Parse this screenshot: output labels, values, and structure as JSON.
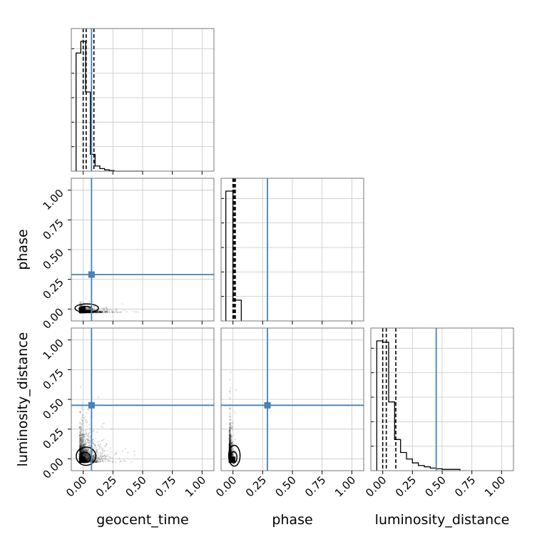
{
  "chart_data": {
    "type": "corner",
    "parameters": [
      "geocent_time",
      "phase",
      "luminosity_distance"
    ],
    "axis_range": [
      -0.1,
      1.1
    ],
    "ticks": [
      0.0,
      0.25,
      0.5,
      0.75,
      1.0
    ],
    "tick_labels": [
      "0.00",
      "0.25",
      "0.50",
      "0.75",
      "1.00"
    ],
    "grid": true,
    "truth": {
      "geocent_time": 0.07,
      "phase": 0.29,
      "luminosity_distance": 0.45
    },
    "truth_color": "#4682b4",
    "histograms": [
      {
        "param": "geocent_time",
        "bin_edges": [
          -0.06,
          -0.02,
          0.02,
          0.06,
          0.1,
          0.14,
          0.18,
          0.22,
          0.26,
          0.3,
          0.34,
          0.38,
          0.42,
          0.46,
          0.5
        ],
        "counts": [
          0.91,
          1.0,
          0.61,
          0.13,
          0.04,
          0.02,
          0.01,
          0.005,
          0.0,
          0.0,
          0.0,
          0.0,
          0.0,
          0.0
        ],
        "quantiles": [
          0.0,
          0.025,
          0.09
        ]
      },
      {
        "param": "phase",
        "bin_edges": [
          -0.06,
          0.0,
          0.07
        ],
        "counts": [
          1.0,
          0.16
        ],
        "quantiles": [
          0.0,
          0.01,
          0.02
        ]
      },
      {
        "param": "luminosity_distance",
        "bin_edges": [
          -0.05,
          0.0,
          0.05,
          0.1,
          0.15,
          0.2,
          0.25,
          0.3,
          0.35,
          0.4,
          0.45,
          0.5,
          0.55,
          0.6,
          0.65
        ],
        "counts": [
          1.0,
          0.99,
          0.53,
          0.24,
          0.14,
          0.09,
          0.06,
          0.04,
          0.03,
          0.02,
          0.015,
          0.01,
          0.01,
          0.01
        ],
        "quantiles": [
          0.0,
          0.03,
          0.11
        ]
      }
    ],
    "scatter_panels": [
      {
        "x_param": "geocent_time",
        "y_param": "phase",
        "x_spread": 0.18,
        "y_spread": 0.04,
        "x_max": 0.5,
        "y_max": 0.12,
        "n": 1500
      },
      {
        "x_param": "geocent_time",
        "y_param": "luminosity_distance",
        "x_spread": 0.15,
        "y_spread": 0.22,
        "x_max": 0.55,
        "y_max": 0.9,
        "n": 2200
      },
      {
        "x_param": "phase",
        "y_param": "luminosity_distance",
        "x_spread": 0.025,
        "y_spread": 0.25,
        "x_max": 0.08,
        "y_max": 0.95,
        "n": 1800
      }
    ],
    "xlabels": [
      "geocent_time",
      "phase",
      "luminosity_distance"
    ],
    "ylabels": [
      "",
      "phase",
      "luminosity_distance"
    ]
  }
}
